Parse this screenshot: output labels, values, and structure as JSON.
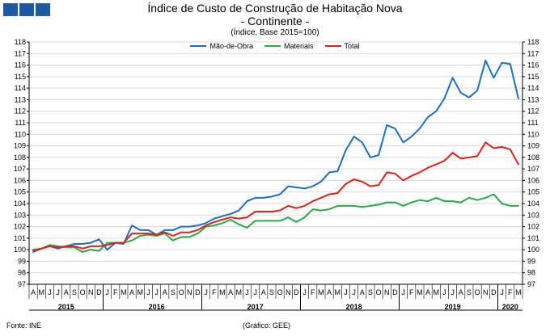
{
  "header": {
    "logo_icon": "ine-logo-icon",
    "logo_color": "#1f5aa0"
  },
  "chart_data": {
    "type": "line",
    "title": "Índice de Custo de Construção de Habitação Nova",
    "title_line2": "- Continente -",
    "subtitle": "(Índice, Base 2015=100)",
    "ylim": [
      97,
      118
    ],
    "y_ticks": [
      "97",
      "98",
      "99",
      "100",
      "101",
      "102",
      "103",
      "104",
      "105",
      "106",
      "107",
      "108",
      "109",
      "110",
      "111",
      "112",
      "113",
      "114",
      "115",
      "116",
      "117",
      "118"
    ],
    "month_labels": [
      "A",
      "M",
      "J",
      "J",
      "A",
      "S",
      "O",
      "N",
      "D",
      "J",
      "F",
      "M",
      "A",
      "M",
      "J",
      "J",
      "A",
      "S",
      "O",
      "N",
      "D",
      "J",
      "F",
      "M",
      "A",
      "M",
      "J",
      "J",
      "A",
      "S",
      "O",
      "N",
      "D",
      "J",
      "F",
      "M",
      "A",
      "M",
      "J",
      "J",
      "A",
      "S",
      "O",
      "N",
      "D",
      "J",
      "F",
      "M",
      "A",
      "M",
      "J",
      "J",
      "A",
      "S",
      "O",
      "N",
      "D",
      "J",
      "F",
      "M"
    ],
    "year_labels": [
      {
        "label": "2015",
        "index": 4
      },
      {
        "label": "2016",
        "index": 15
      },
      {
        "label": "2017",
        "index": 27
      },
      {
        "label": "2018",
        "index": 39
      },
      {
        "label": "2019",
        "index": 51
      },
      {
        "label": "2020",
        "index": 58
      }
    ],
    "year_separators": [
      8.5,
      20.5,
      32.5,
      44.5,
      56.5
    ],
    "legend_position": "top-center",
    "series": [
      {
        "name": "Mão-de-Obra",
        "color": "#1f6fbf",
        "values": [
          99.8,
          100.1,
          100.3,
          100.1,
          100.3,
          100.5,
          100.5,
          100.6,
          100.9,
          100.0,
          100.6,
          100.5,
          102.1,
          101.7,
          101.7,
          101.3,
          101.7,
          101.7,
          102.0,
          102.0,
          102.1,
          102.3,
          102.7,
          102.9,
          103.1,
          103.4,
          104.2,
          104.5,
          104.5,
          104.6,
          104.8,
          105.5,
          105.4,
          105.3,
          105.5,
          105.9,
          106.7,
          106.8,
          108.6,
          109.8,
          109.3,
          108.0,
          108.2,
          110.8,
          110.5,
          109.3,
          109.8,
          110.5,
          111.5,
          112.0,
          113.1,
          114.9,
          113.6,
          113.2,
          113.8,
          116.4,
          114.9,
          116.2,
          116.1,
          113.1
        ]
      },
      {
        "name": "Materiais",
        "color": "#2aa84a",
        "values": [
          100.0,
          100.1,
          100.4,
          100.3,
          100.2,
          100.2,
          99.8,
          100.0,
          99.9,
          100.6,
          100.6,
          100.6,
          100.8,
          101.2,
          101.3,
          101.2,
          101.4,
          100.8,
          101.1,
          101.1,
          101.4,
          102.0,
          102.1,
          102.3,
          102.6,
          102.2,
          101.9,
          102.5,
          102.5,
          102.5,
          102.5,
          102.8,
          102.4,
          102.8,
          103.5,
          103.4,
          103.5,
          103.8,
          103.8,
          103.8,
          103.7,
          103.8,
          103.9,
          104.1,
          104.1,
          103.8,
          104.1,
          104.3,
          104.2,
          104.5,
          104.2,
          104.2,
          104.1,
          104.5,
          104.3,
          104.5,
          104.8,
          104.0,
          103.8,
          103.8
        ]
      },
      {
        "name": "Total",
        "color": "#e0201a",
        "values": [
          99.9,
          100.1,
          100.3,
          100.2,
          100.3,
          100.3,
          100.1,
          100.3,
          100.3,
          100.4,
          100.6,
          100.6,
          101.4,
          101.4,
          101.4,
          101.3,
          101.5,
          101.2,
          101.5,
          101.5,
          101.7,
          102.1,
          102.4,
          102.6,
          102.8,
          102.7,
          102.8,
          103.3,
          103.3,
          103.3,
          103.4,
          103.8,
          103.6,
          103.8,
          104.2,
          104.5,
          104.8,
          104.9,
          105.7,
          106.1,
          105.9,
          105.5,
          105.6,
          106.7,
          106.6,
          106.0,
          106.4,
          106.7,
          107.1,
          107.4,
          107.7,
          108.4,
          107.9,
          108.0,
          108.1,
          109.3,
          108.8,
          108.9,
          108.7,
          107.4
        ]
      }
    ]
  },
  "footer": {
    "source": "Fonte: INE",
    "credit": "(Gráfico: GEE)"
  }
}
